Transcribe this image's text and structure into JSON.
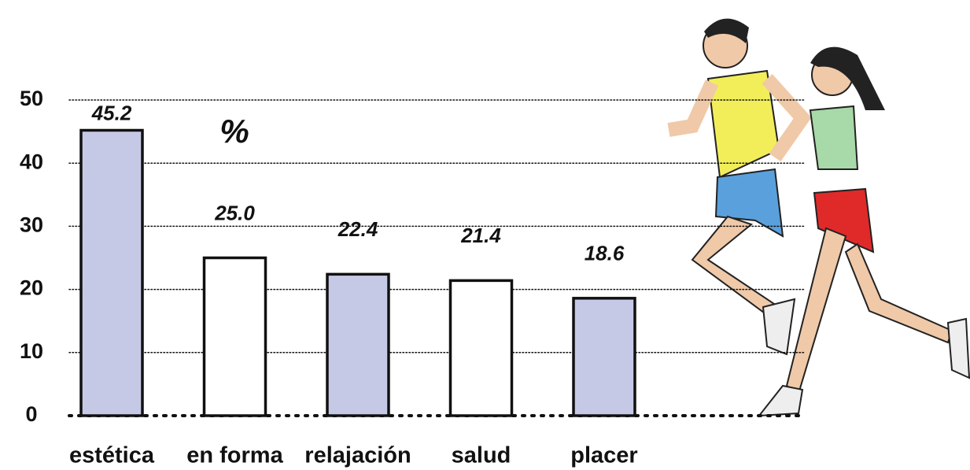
{
  "chart_data": {
    "type": "bar",
    "categories": [
      "estética",
      "en forma",
      "relajación",
      "salud",
      "placer"
    ],
    "values": [
      45.2,
      25.0,
      22.4,
      21.4,
      18.6
    ],
    "value_labels": [
      "45.2",
      "25.0",
      "22.4",
      "21.4",
      "18.6"
    ],
    "colors": [
      "#c6c9e6",
      "#ffffff",
      "#c6c9e6",
      "#ffffff",
      "#c6c9e6"
    ],
    "annotation": "%",
    "ylim": [
      0,
      50
    ],
    "yticks": [
      0,
      10,
      20,
      30,
      40,
      50
    ],
    "grid": true
  }
}
